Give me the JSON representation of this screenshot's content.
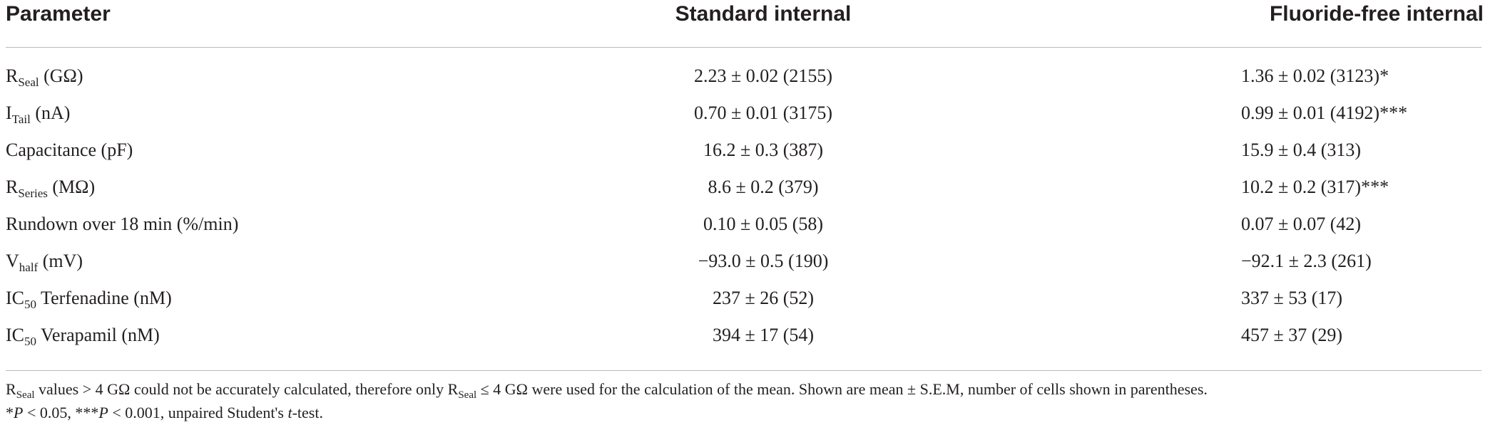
{
  "table": {
    "headers": {
      "parameter": "Parameter",
      "standard": "Standard internal",
      "fluoride_free": "Fluoride-free internal"
    },
    "rows": [
      {
        "param_main": "R",
        "param_sub": "Seal",
        "param_rest": " (GΩ)",
        "standard": "2.23 ± 0.02 (2155)",
        "fluoride_free": "1.36 ± 0.02 (3123)*"
      },
      {
        "param_main": "I",
        "param_sub": "Tail",
        "param_rest": " (nA)",
        "standard": "0.70 ± 0.01 (3175)",
        "fluoride_free": "0.99 ± 0.01 (4192)***"
      },
      {
        "param_main": "Capacitance (pF)",
        "param_sub": "",
        "param_rest": "",
        "standard": "16.2 ± 0.3 (387)",
        "fluoride_free": "15.9 ± 0.4 (313)"
      },
      {
        "param_main": "R",
        "param_sub": "Series",
        "param_rest": " (MΩ)",
        "standard": "8.6 ± 0.2 (379)",
        "fluoride_free": "10.2 ± 0.2 (317)***"
      },
      {
        "param_main": "Rundown over 18 min (%/min)",
        "param_sub": "",
        "param_rest": "",
        "standard": "0.10 ± 0.05 (58)",
        "fluoride_free": "0.07 ± 0.07 (42)"
      },
      {
        "param_main": "V",
        "param_sub": "half",
        "param_rest": " (mV)",
        "standard": "−93.0 ± 0.5 (190)",
        "fluoride_free": "−92.1 ± 2.3 (261)"
      },
      {
        "param_main": "IC",
        "param_sub": "50",
        "param_rest": " Terfenadine (nM)",
        "standard": "237 ± 26 (52)",
        "fluoride_free": "337 ± 53 (17)"
      },
      {
        "param_main": "IC",
        "param_sub": "50",
        "param_rest": " Verapamil (nM)",
        "standard": "394 ± 17 (54)",
        "fluoride_free": "457 ± 37 (29)"
      }
    ]
  },
  "footnote": {
    "line1_a": "R",
    "line1_a_sub": "Seal",
    "line1_b": " values > 4 GΩ could not be accurately calculated, therefore only R",
    "line1_b_sub": "Seal",
    "line1_c": " ≤ 4 GΩ were used for the calculation of the mean. Shown are mean ± S.E.M, number of cells shown in parentheses.",
    "line2_a": "*",
    "line2_p1": "P",
    "line2_b": " < 0.05, ***",
    "line2_p2": "P",
    "line2_c": " < 0.001, unpaired Student's ",
    "line2_t": "t",
    "line2_d": "-test."
  }
}
